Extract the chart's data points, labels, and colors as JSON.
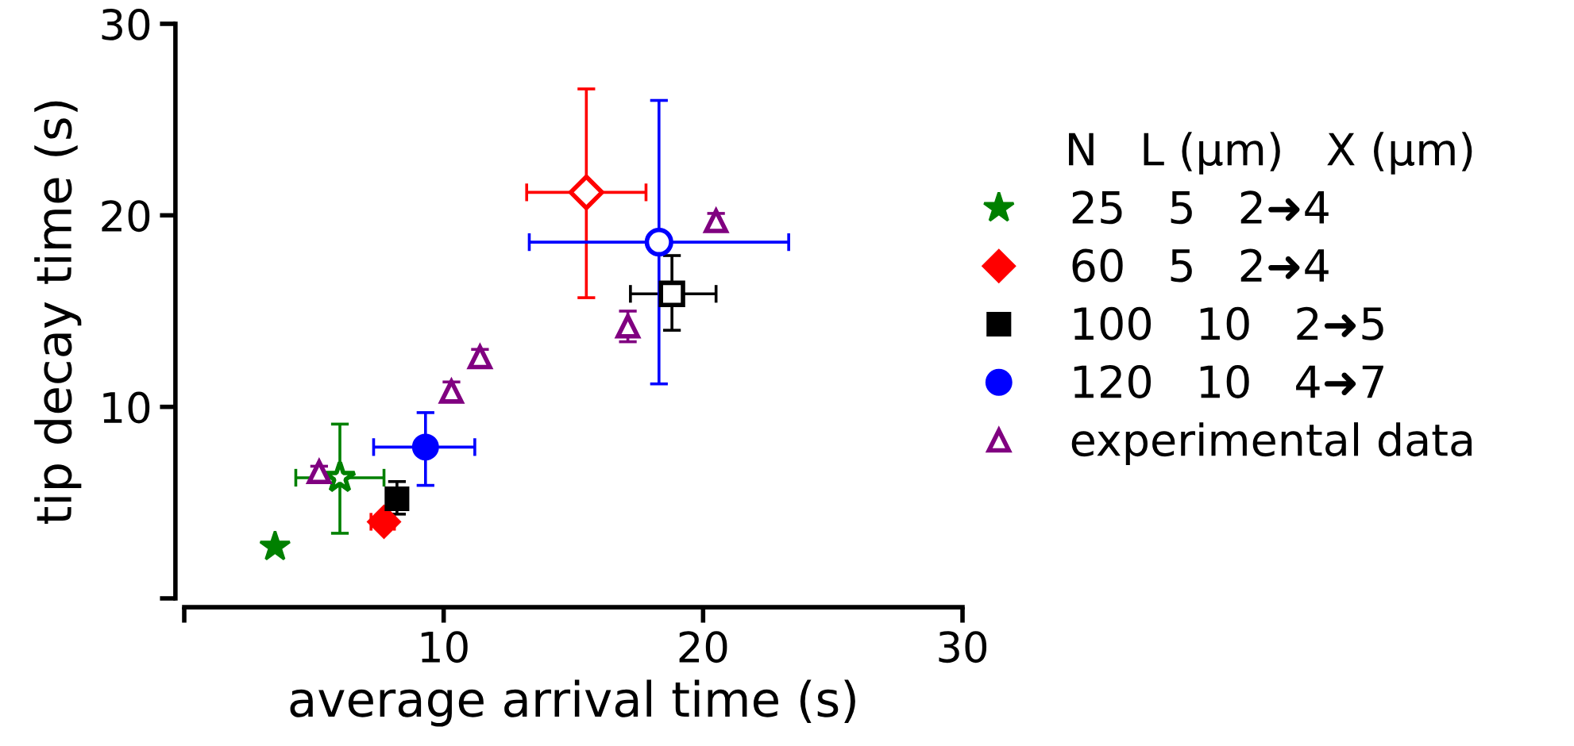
{
  "chart_data": {
    "type": "scatter",
    "xlabel": "average arrival time (s)",
    "ylabel": "tip decay time (s)",
    "xlim": [
      0,
      30
    ],
    "ylim": [
      0,
      30
    ],
    "xticks": [
      {
        "value": 0,
        "label": null
      },
      10,
      20,
      30
    ],
    "yticks": [
      {
        "value": 0,
        "label": null
      },
      10,
      20,
      30
    ],
    "grid": false,
    "legend": "right",
    "legend_title": "N\tL (µm)\tX (µm)",
    "series": [
      {
        "name": "25\t5\t2➜4",
        "color": "#008000",
        "marker": "star",
        "x": [
          3.5
        ],
        "values": [
          2.7
        ]
      },
      {
        "color": "#008000",
        "marker": "star",
        "x": [
          6.0
        ],
        "values": [
          6.3
        ],
        "xerrors": [
          [
            4.3,
            7.7
          ]
        ],
        "errors": [
          [
            3.4,
            9.1
          ]
        ]
      },
      {
        "name": "60\t5\t2➜4",
        "color": "#ff0000",
        "marker": "diamond",
        "x": [
          7.7
        ],
        "values": [
          4.0
        ],
        "xerrors": [
          [
            7.2,
            8.1
          ]
        ]
      },
      {
        "color": "#ff0000",
        "marker": "diamond",
        "x": [
          15.5
        ],
        "values": [
          21.2
        ],
        "xerrors": [
          [
            13.2,
            17.8
          ]
        ],
        "errors": [
          [
            15.7,
            26.6
          ]
        ]
      },
      {
        "name": "100\t10\t2➜5",
        "color": "#000000",
        "marker": "square",
        "x": [
          8.2
        ],
        "values": [
          5.2
        ],
        "errors": [
          [
            4.4,
            6.1
          ]
        ]
      },
      {
        "color": "#000000",
        "marker": "square",
        "x": [
          18.8
        ],
        "values": [
          15.9
        ],
        "xerrors": [
          [
            17.2,
            20.5
          ]
        ],
        "errors": [
          [
            14.0,
            17.9
          ]
        ]
      },
      {
        "name": "120\t10\t4➜7",
        "color": "#0000ff",
        "marker": "circle",
        "x": [
          9.3
        ],
        "values": [
          7.9
        ],
        "xerrors": [
          [
            7.3,
            11.2
          ]
        ],
        "errors": [
          [
            5.9,
            9.7
          ]
        ]
      },
      {
        "color": "#0000ff",
        "marker": "circle",
        "x": [
          18.3
        ],
        "values": [
          18.6
        ],
        "xerrors": [
          [
            13.3,
            23.3
          ]
        ],
        "errors": [
          [
            11.2,
            26.0
          ]
        ]
      },
      {
        "name": "experimental data",
        "color": "#800080",
        "marker": "triangle",
        "x": [
          5.2,
          10.3,
          11.4,
          17.1,
          20.5
        ],
        "values": [
          6.6,
          10.8,
          12.6,
          14.2,
          19.7
        ],
        "errors": [
          0.3,
          0.5,
          0.4,
          0.8,
          0.4
        ]
      }
    ]
  }
}
